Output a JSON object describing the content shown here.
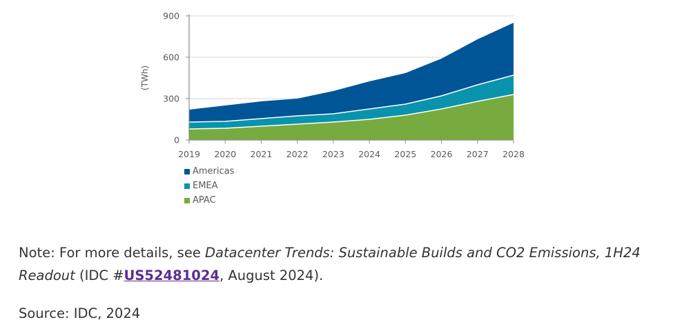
{
  "chart_data": {
    "type": "area",
    "stacked": true,
    "title": "",
    "xlabel": "",
    "ylabel": "(TWh)",
    "x": [
      "2019",
      "2020",
      "2021",
      "2022",
      "2023",
      "2024",
      "2025",
      "2026",
      "2027",
      "2028"
    ],
    "ylim": [
      0,
      900
    ],
    "yticks": [
      0,
      300,
      600,
      900
    ],
    "grid": true,
    "legend_position": "bottom-left",
    "series": [
      {
        "name": "APAC",
        "color": "#78ab3f",
        "values": [
          80,
          85,
          100,
          115,
          130,
          150,
          180,
          225,
          280,
          330
        ]
      },
      {
        "name": "EMEA",
        "color": "#0a93ad",
        "values": [
          50,
          50,
          55,
          60,
          60,
          75,
          80,
          95,
          120,
          140
        ]
      },
      {
        "name": "Americas",
        "color": "#005596",
        "values": [
          90,
          115,
          125,
          125,
          165,
          200,
          225,
          270,
          330,
          380
        ]
      }
    ],
    "stack_totals": {
      "APAC": [
        80,
        85,
        100,
        115,
        130,
        150,
        180,
        225,
        280,
        330
      ],
      "EMEA_cumulative": [
        130,
        135,
        155,
        175,
        190,
        225,
        260,
        320,
        400,
        470
      ],
      "Americas_cumulative": [
        220,
        250,
        280,
        300,
        355,
        425,
        485,
        590,
        730,
        850
      ]
    }
  },
  "legend": [
    {
      "label": "Americas",
      "color": "#005596"
    },
    {
      "label": "EMEA",
      "color": "#0a93ad"
    },
    {
      "label": "APAC",
      "color": "#78ab3f"
    }
  ],
  "note": {
    "prefix": "Note: For more details, see ",
    "title": "Datacenter Trends: Sustainable Builds and CO2 Emissions, 1H24 Readout",
    "mid": " (IDC #",
    "link_text": "US52481024",
    "suffix": ", August 2024)."
  },
  "source": "Source: IDC, 2024"
}
